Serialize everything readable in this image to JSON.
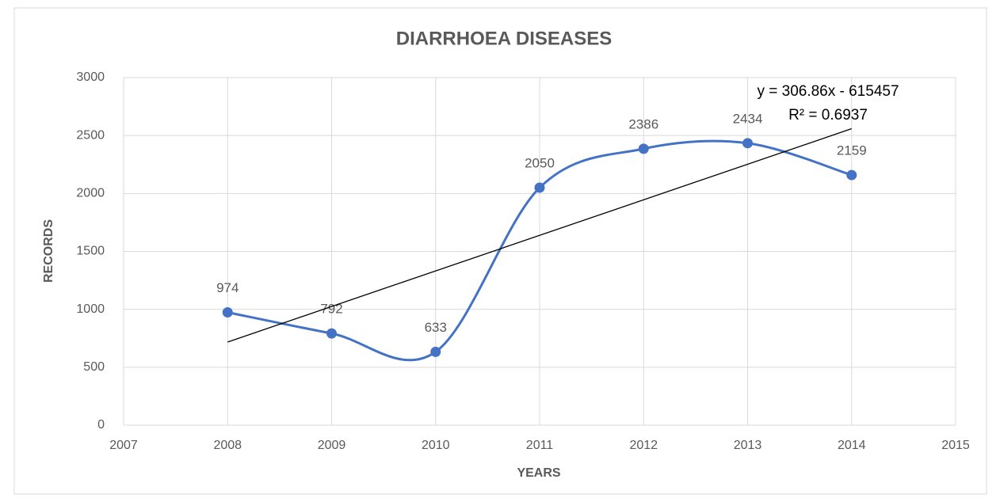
{
  "chart_data": {
    "type": "line",
    "title": "DIARRHOEA DISEASES",
    "x_label": "YEARS",
    "y_label": "RECORDS",
    "x": [
      2008,
      2009,
      2010,
      2011,
      2012,
      2013,
      2014
    ],
    "values": [
      974,
      792,
      633,
      2050,
      2386,
      2434,
      2159
    ],
    "color": "#4472c4",
    "smooth": true,
    "xlim": [
      2007,
      2015
    ],
    "xticks": [
      2007,
      2008,
      2009,
      2010,
      2011,
      2012,
      2013,
      2014,
      2015
    ],
    "ylim": [
      0,
      3000
    ],
    "yticks": [
      0,
      500,
      1000,
      1500,
      2000,
      2500,
      3000
    ],
    "grid": true,
    "trendline": {
      "slope": 306.86,
      "intercept": -615457,
      "color": "#000000",
      "equation": "y = 306.86x - 615457",
      "r_squared": "R² = 0.6937"
    }
  }
}
